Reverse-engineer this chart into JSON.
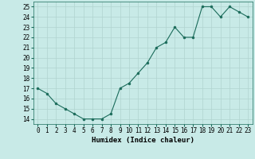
{
  "x": [
    0,
    1,
    2,
    3,
    4,
    5,
    6,
    7,
    8,
    9,
    10,
    11,
    12,
    13,
    14,
    15,
    16,
    17,
    18,
    19,
    20,
    21,
    22,
    23
  ],
  "y": [
    17,
    16.5,
    15.5,
    15,
    14.5,
    14,
    14,
    14,
    14.5,
    17,
    17.5,
    18.5,
    19.5,
    21,
    21.5,
    23,
    22,
    22,
    25,
    25,
    24,
    25,
    24.5,
    24
  ],
  "xlabel": "Humidex (Indice chaleur)",
  "xlim": [
    -0.5,
    23.5
  ],
  "ylim": [
    13.5,
    25.5
  ],
  "yticks": [
    14,
    15,
    16,
    17,
    18,
    19,
    20,
    21,
    22,
    23,
    24,
    25
  ],
  "xticks": [
    0,
    1,
    2,
    3,
    4,
    5,
    6,
    7,
    8,
    9,
    10,
    11,
    12,
    13,
    14,
    15,
    16,
    17,
    18,
    19,
    20,
    21,
    22,
    23
  ],
  "line_color": "#1a6b5a",
  "marker_color": "#1a6b5a",
  "bg_color": "#c8eae7",
  "grid_color": "#b0d4d0",
  "label_fontsize": 6.5,
  "tick_fontsize": 5.5
}
